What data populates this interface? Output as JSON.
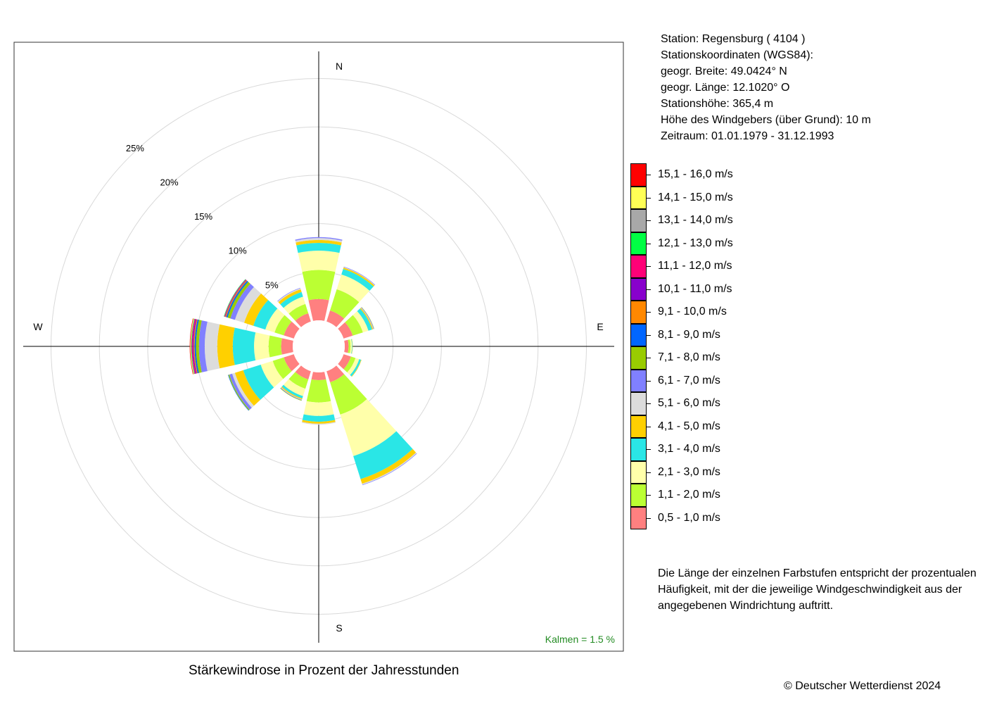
{
  "station_info": {
    "station": "Station:  Regensburg  ( 4104 )",
    "coords_heading": "Stationskoordinaten (WGS84):",
    "latitude": "geogr. Breite: 49.0424° N",
    "longitude": "geogr. Länge: 12.1020° O",
    "elevation": "Stationshöhe: 365,4 m",
    "sensor_height": "Höhe des Windgebers (über Grund): 10 m",
    "period": "Zeitraum: 01.01.1979 - 31.12.1993"
  },
  "caption": "Stärkewindrose in Prozent der Jahresstunden",
  "copyright": "© Deutscher Wetterdienst  2024",
  "note": "Die Länge der einzelnen Farbstufen entspricht der prozentualen Häufigkeit, mit der die jeweilige Windgeschwindigkeit aus der angegebenen Windrichtung auftritt.",
  "calm_label": "Kalmen  =  1.5 %",
  "compass": {
    "n": "N",
    "e": "E",
    "s": "S",
    "w": "W"
  },
  "chart_data": {
    "type": "wind-rose",
    "title": "Stärkewindrose in Prozent der Jahresstunden",
    "unit": "%",
    "calm_percent": 1.5,
    "radial_ticks": [
      5,
      10,
      15,
      20,
      25
    ],
    "radial_tick_labels": [
      "5%",
      "10%",
      "15%",
      "20%",
      "25%"
    ],
    "radial_max": 25,
    "speed_classes": [
      {
        "label": "0,5 - 1,0 m/s",
        "color": "#FF8080"
      },
      {
        "label": "1,1 - 2,0 m/s",
        "color": "#BBFF33"
      },
      {
        "label": "2,1 - 3,0 m/s",
        "color": "#FFFFAA"
      },
      {
        "label": "3,1 - 4,0 m/s",
        "color": "#2AE6E6"
      },
      {
        "label": "4,1 - 5,0 m/s",
        "color": "#FFD000"
      },
      {
        "label": "5,1 - 6,0 m/s",
        "color": "#DCDCDC"
      },
      {
        "label": "6,1 - 7,0 m/s",
        "color": "#8080FF"
      },
      {
        "label": "7,1 - 8,0 m/s",
        "color": "#99CC00"
      },
      {
        "label": "8,1 - 9,0 m/s",
        "color": "#0066FF"
      },
      {
        "label": "9,1 - 10,0 m/s",
        "color": "#FF8800"
      },
      {
        "label": "10,1 - 11,0 m/s",
        "color": "#8800CC"
      },
      {
        "label": "11,1 - 12,0 m/s",
        "color": "#FF0077"
      },
      {
        "label": "12,1 - 13,0 m/s",
        "color": "#00FF44"
      },
      {
        "label": "13,1 - 14,0 m/s",
        "color": "#A8A8A8"
      },
      {
        "label": "14,1 - 15,0 m/s",
        "color": "#FFFF55"
      },
      {
        "label": "15,1 - 16,0 m/s",
        "color": "#FF0000"
      }
    ],
    "directions": [
      {
        "deg": 0,
        "values": [
          2.2,
          3.0,
          2.0,
          0.8,
          0.3,
          0.2,
          0.1
        ]
      },
      {
        "deg": 30,
        "values": [
          1.2,
          2.3,
          1.6,
          0.6,
          0.15,
          0.05,
          0.05
        ]
      },
      {
        "deg": 60,
        "values": [
          1.0,
          1.1,
          0.6,
          0.4,
          0.1,
          0.05,
          0.05,
          0.03
        ]
      },
      {
        "deg": 90,
        "values": [
          0.4,
          0.2,
          0.15,
          0.05,
          0.03
        ]
      },
      {
        "deg": 120,
        "values": [
          0.8,
          0.5,
          0.4,
          0.2,
          0.05
        ]
      },
      {
        "deg": 150,
        "values": [
          1.2,
          3.5,
          4.5,
          2.5,
          0.5,
          0.1,
          0.05
        ]
      },
      {
        "deg": 180,
        "values": [
          0.8,
          2.3,
          1.4,
          0.6,
          0.2,
          0.1
        ]
      },
      {
        "deg": 210,
        "values": [
          0.9,
          1.0,
          0.8,
          0.25,
          0.1,
          0.05,
          0.05,
          0.05
        ]
      },
      {
        "deg": 240,
        "values": [
          1.1,
          1.2,
          1.3,
          1.9,
          0.9,
          0.3,
          0.3,
          0.1,
          0.05
        ]
      },
      {
        "deg": 270,
        "values": [
          1.2,
          1.3,
          1.5,
          2.2,
          1.6,
          1.3,
          0.6,
          0.3,
          0.15,
          0.1,
          0.1,
          0.1,
          0.05,
          0.05,
          0.05,
          0.05
        ]
      },
      {
        "deg": 300,
        "values": [
          1.1,
          1.0,
          1.0,
          1.3,
          1.0,
          1.0,
          0.5,
          0.3,
          0.15,
          0.1,
          0.05,
          0.05,
          0.05
        ]
      },
      {
        "deg": 330,
        "values": [
          0.9,
          1.0,
          0.8,
          0.5,
          0.3,
          0.1,
          0.05
        ]
      }
    ]
  }
}
